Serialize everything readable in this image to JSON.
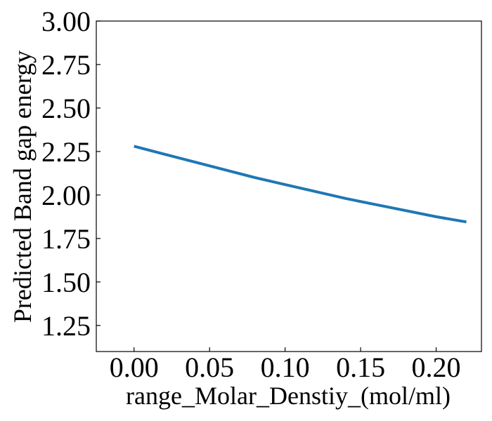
{
  "chart_data": {
    "type": "line",
    "title": "",
    "xlabel": "range_Molar_Denstiy_(mol/ml)",
    "ylabel": "Predicted Band gap energy",
    "xlim": [
      -0.025,
      0.23
    ],
    "ylim": [
      1.1,
      3.0
    ],
    "x_ticks": [
      0.0,
      0.05,
      0.1,
      0.15,
      0.2
    ],
    "x_tick_labels": [
      "0.00",
      "0.05",
      "0.10",
      "0.15",
      "0.20"
    ],
    "y_ticks": [
      1.25,
      1.5,
      1.75,
      2.0,
      2.25,
      2.5,
      2.75,
      3.0
    ],
    "y_tick_labels": [
      "1.25",
      "1.50",
      "1.75",
      "2.00",
      "2.25",
      "2.50",
      "2.75",
      "3.00"
    ],
    "grid": false,
    "legend": "none",
    "series": [
      {
        "name": "Predicted Band gap energy",
        "color": "#1f77b4",
        "x": [
          0.0,
          0.02,
          0.04,
          0.06,
          0.08,
          0.1,
          0.12,
          0.14,
          0.16,
          0.18,
          0.2,
          0.22
        ],
        "y": [
          2.28,
          2.235,
          2.19,
          2.145,
          2.1,
          2.06,
          2.02,
          1.98,
          1.945,
          1.91,
          1.875,
          1.845
        ]
      }
    ]
  }
}
